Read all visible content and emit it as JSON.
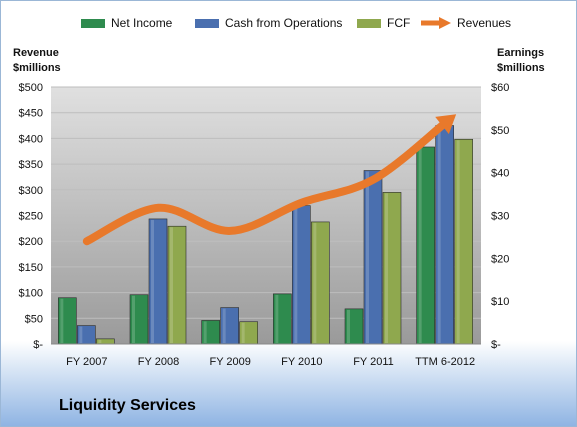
{
  "company": "Liquidity Services",
  "legend": {
    "net_income": "Net Income",
    "cfo": "Cash from Operations",
    "fcf": "FCF",
    "revenues": "Revenues"
  },
  "axis": {
    "left_title_1": "Revenue",
    "left_title_2": "$millions",
    "right_title_1": "Earnings",
    "right_title_2": "$millions"
  },
  "colors": {
    "net_income": "#2e8b4e",
    "cfo": "#4a6faf",
    "fcf": "#8fa84e",
    "revenues": "#e8792b"
  },
  "chart_data": {
    "type": "bar",
    "categories": [
      "FY 2007",
      "FY 2008",
      "FY 2009",
      "FY 2010",
      "FY 2011",
      "TTM 6-2012"
    ],
    "series": [
      {
        "name": "Net Income",
        "axis": "right",
        "values": [
          10.8,
          11.5,
          5.5,
          11.7,
          8.2,
          46
        ]
      },
      {
        "name": "Cash from Operations",
        "axis": "right",
        "values": [
          4.3,
          29.2,
          8.5,
          32.3,
          40.5,
          51
        ]
      },
      {
        "name": "FCF",
        "axis": "right",
        "values": [
          1.2,
          27.5,
          5.2,
          28.5,
          35.4,
          47.8
        ]
      },
      {
        "name": "Revenues",
        "axis": "left",
        "type": "line",
        "values": [
          200,
          265,
          220,
          275,
          320,
          430
        ]
      }
    ],
    "ylim_left": [
      0,
      500
    ],
    "ylim_right": [
      0,
      60
    ],
    "yticks_left": [
      "$-",
      "$50",
      "$100",
      "$150",
      "$200",
      "$250",
      "$300",
      "$350",
      "$400",
      "$450",
      "$500"
    ],
    "yticks_right": [
      "$-",
      "$10",
      "$20",
      "$30",
      "$40",
      "$50",
      "$60"
    ],
    "ylabel_left": "Revenue $millions",
    "ylabel_right": "Earnings $millions",
    "grid": true,
    "legend_position": "top"
  }
}
